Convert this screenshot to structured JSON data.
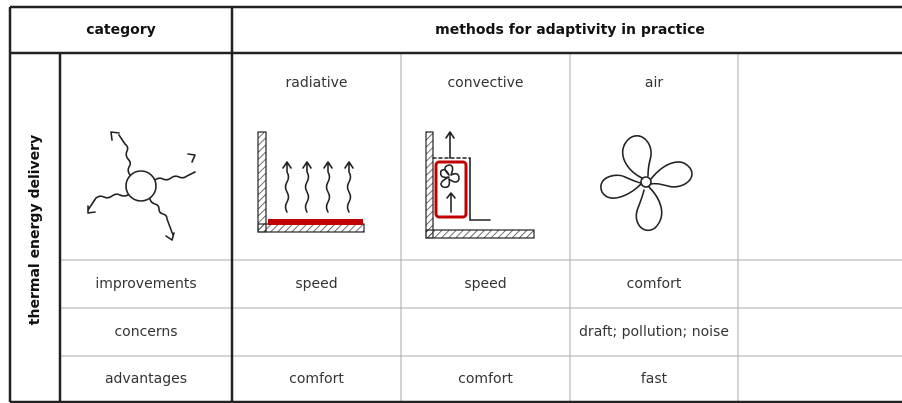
{
  "header": {
    "category": "category",
    "methods": "methods for adaptivity in practice"
  },
  "side_label": "thermal energy delivery",
  "columns": [
    "radiative",
    "convective",
    "air"
  ],
  "rows": [
    {
      "label": "improvements",
      "cells": [
        "speed",
        "speed",
        "comfort"
      ]
    },
    {
      "label": "concerns",
      "cells": [
        null,
        null,
        "draft; pollution; noise"
      ]
    },
    {
      "label": "advantages",
      "cells": [
        "comfort",
        "comfort",
        "fast"
      ]
    }
  ]
}
